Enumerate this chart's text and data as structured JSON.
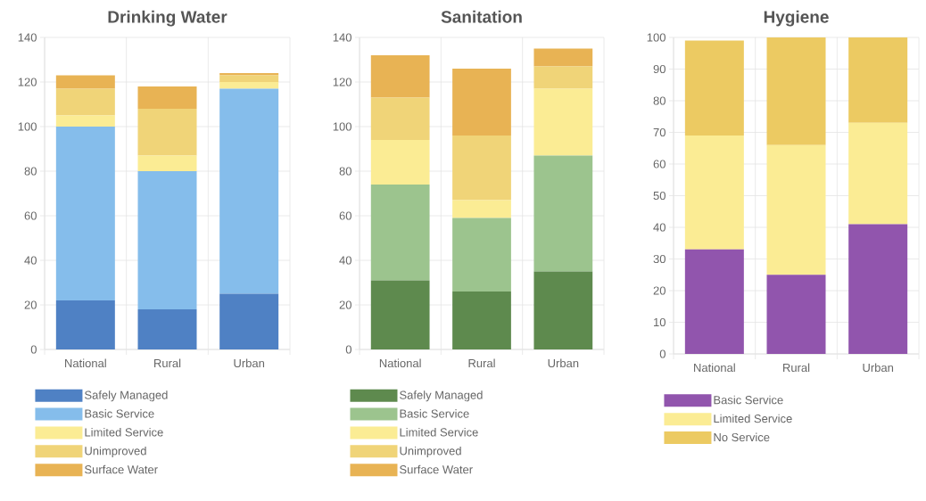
{
  "chart_data": [
    {
      "type": "bar",
      "stacked": true,
      "title": "Drinking Water",
      "categories": [
        "National",
        "Rural",
        "Urban"
      ],
      "ylim": [
        0,
        140
      ],
      "yticks": [
        0,
        20,
        40,
        60,
        80,
        100,
        120,
        140
      ],
      "grid": true,
      "legend": "bottom",
      "series": [
        {
          "name": "Safely Managed",
          "color": "#4f81c4",
          "values": [
            22,
            18,
            25
          ]
        },
        {
          "name": "Basic Service",
          "color": "#85bdeb",
          "values": [
            78,
            62,
            92
          ]
        },
        {
          "name": "Limited Service",
          "color": "#fbec94",
          "values": [
            5,
            7,
            3
          ]
        },
        {
          "name": "Unimproved",
          "color": "#f0d478",
          "values": [
            12,
            21,
            3
          ]
        },
        {
          "name": "Surface Water",
          "color": "#e8b354",
          "values": [
            6,
            10,
            1
          ]
        }
      ]
    },
    {
      "type": "bar",
      "stacked": true,
      "title": "Sanitation",
      "categories": [
        "National",
        "Rural",
        "Urban"
      ],
      "ylim": [
        0,
        140
      ],
      "yticks": [
        0,
        20,
        40,
        60,
        80,
        100,
        120,
        140
      ],
      "grid": true,
      "legend": "bottom",
      "series": [
        {
          "name": "Safely Managed",
          "color": "#5e8a4e",
          "values": [
            31,
            26,
            35
          ]
        },
        {
          "name": "Basic Service",
          "color": "#9cc48e",
          "values": [
            43,
            33,
            52
          ]
        },
        {
          "name": "Limited Service",
          "color": "#fbec94",
          "values": [
            20,
            8,
            30
          ]
        },
        {
          "name": "Unimproved",
          "color": "#f0d478",
          "values": [
            19,
            29,
            10
          ]
        },
        {
          "name": "Surface Water",
          "color": "#e8b354",
          "values": [
            19,
            30,
            8
          ]
        }
      ]
    },
    {
      "type": "bar",
      "stacked": true,
      "title": "Hygiene",
      "categories": [
        "National",
        "Rural",
        "Urban"
      ],
      "ylim": [
        0,
        100
      ],
      "yticks": [
        0,
        10,
        20,
        30,
        40,
        50,
        60,
        70,
        80,
        90,
        100
      ],
      "grid": true,
      "legend": "bottom",
      "series": [
        {
          "name": "Basic Service",
          "color": "#9155ad",
          "values": [
            33,
            25,
            41
          ]
        },
        {
          "name": "Limited Service",
          "color": "#fbec94",
          "values": [
            36,
            41,
            32
          ]
        },
        {
          "name": "No Service",
          "color": "#ecca62",
          "values": [
            30,
            34,
            27
          ]
        }
      ]
    }
  ]
}
